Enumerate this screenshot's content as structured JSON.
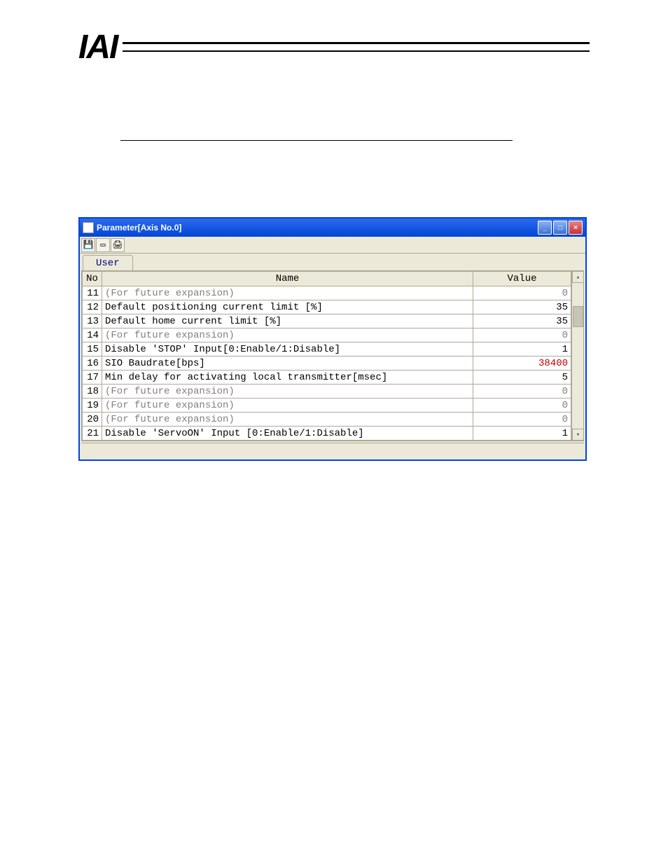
{
  "header": {
    "logo": "IAI"
  },
  "window": {
    "title": "Parameter[Axis No.0]",
    "tab": "User",
    "columns": {
      "no": "No",
      "name": "Name",
      "value": "Value"
    },
    "rows": [
      {
        "no": "11",
        "name": "(For future expansion)",
        "value": "0",
        "dim": true
      },
      {
        "no": "12",
        "name": "Default positioning current limit [%]",
        "value": "35"
      },
      {
        "no": "13",
        "name": "Default home current limit [%]",
        "value": "35"
      },
      {
        "no": "14",
        "name": "(For future expansion)",
        "value": "0",
        "dim": true
      },
      {
        "no": "15",
        "name": "Disable 'STOP' Input[0:Enable/1:Disable]",
        "value": "1"
      },
      {
        "no": "16",
        "name": "SIO Baudrate[bps]",
        "value": "38400",
        "highlight": true
      },
      {
        "no": "17",
        "name": "Min delay for activating local transmitter[msec]",
        "value": "5"
      },
      {
        "no": "18",
        "name": "(For future expansion)",
        "value": "0",
        "dim": true
      },
      {
        "no": "19",
        "name": "(For future expansion)",
        "value": "0",
        "dim": true
      },
      {
        "no": "20",
        "name": "(For future expansion)",
        "value": "0",
        "dim": true
      },
      {
        "no": "21",
        "name": "Disable 'ServoON' Input [0:Enable/1:Disable]",
        "value": "1"
      }
    ]
  },
  "colors": {
    "titlebar_bg": "#0046d5",
    "window_bg": "#ece9d8",
    "border": "#aca899",
    "dim_text": "#808080",
    "highlight_text": "#c00000"
  }
}
